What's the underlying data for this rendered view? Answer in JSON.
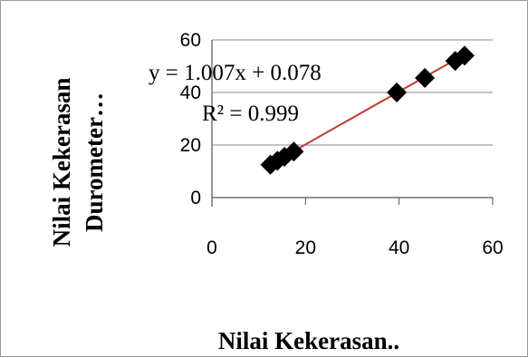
{
  "chart_data": {
    "type": "scatter",
    "xlabel": "Nilai Kekerasan..",
    "ylabel_lines": [
      "Nilai Kekerasan",
      "Durometer…"
    ],
    "xlim": [
      0,
      60
    ],
    "ylim": [
      0,
      60
    ],
    "x_ticks": [
      "0",
      "20",
      "40",
      "60"
    ],
    "y_ticks": [
      "0",
      "20",
      "40",
      "60"
    ],
    "grid": "horizontal",
    "marker": "diamond",
    "marker_color": "#000000",
    "trendline_color": "#c0392b",
    "points": [
      {
        "x": 12.5,
        "y": 12.5
      },
      {
        "x": 14,
        "y": 14
      },
      {
        "x": 15.5,
        "y": 15.5
      },
      {
        "x": 17.5,
        "y": 17.5
      },
      {
        "x": 39.5,
        "y": 40
      },
      {
        "x": 45.5,
        "y": 45.5
      },
      {
        "x": 52,
        "y": 52
      },
      {
        "x": 54,
        "y": 54
      }
    ],
    "trendline": {
      "slope": 1.007,
      "intercept": 0.078,
      "x_range": [
        12.5,
        54
      ]
    },
    "annotations": {
      "equation": "y = 1.007x + 0.078",
      "r2_label": "R² = 0.999"
    }
  }
}
